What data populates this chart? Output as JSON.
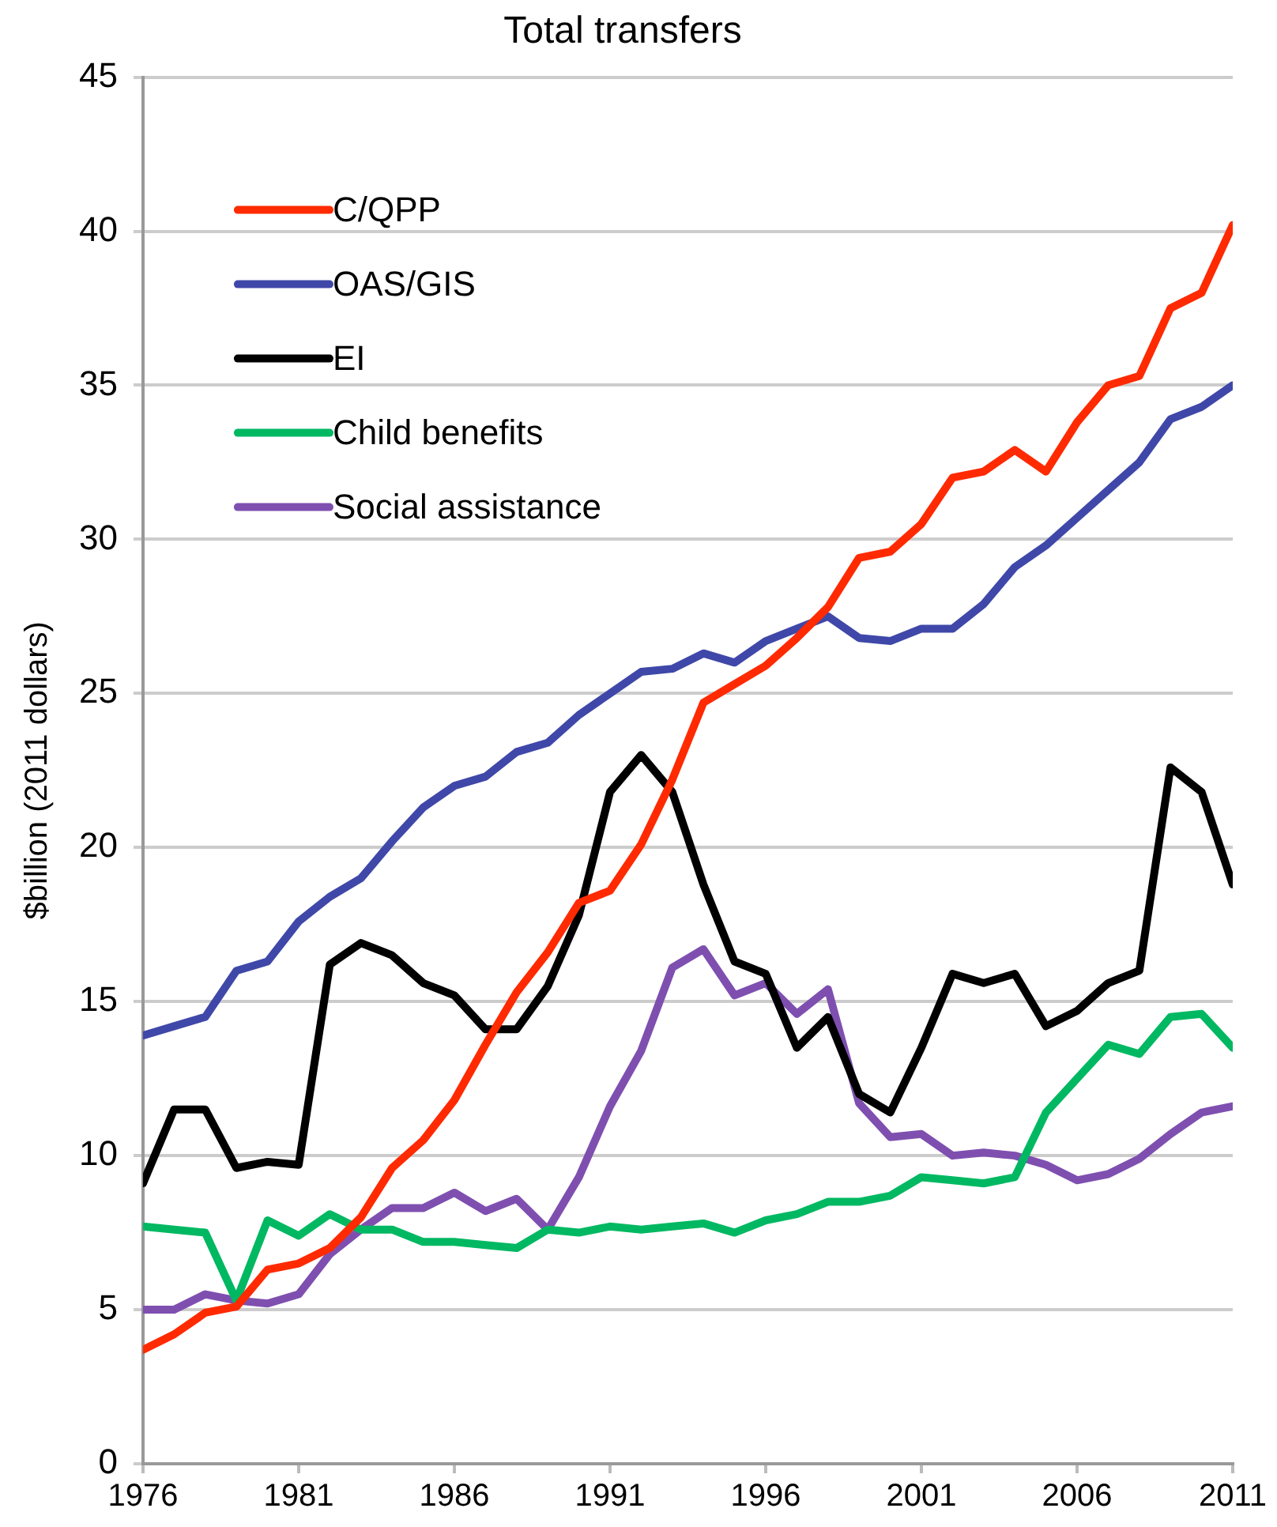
{
  "chart_data": {
    "type": "line",
    "title": "Total transfers",
    "ylabel": "$billion (2011 dollars)",
    "x": [
      1976,
      1977,
      1978,
      1979,
      1980,
      1981,
      1982,
      1983,
      1984,
      1985,
      1986,
      1987,
      1988,
      1989,
      1990,
      1991,
      1992,
      1993,
      1994,
      1995,
      1996,
      1997,
      1998,
      1999,
      2000,
      2001,
      2002,
      2003,
      2004,
      2005,
      2006,
      2007,
      2008,
      2009,
      2010,
      2011
    ],
    "xlim": [
      1976,
      2011
    ],
    "xticks": [
      1976,
      1981,
      1986,
      1991,
      1996,
      2001,
      2006,
      2011
    ],
    "ylim": [
      0,
      45
    ],
    "yticks": [
      0,
      5,
      10,
      15,
      20,
      25,
      30,
      35,
      40,
      45
    ],
    "grid": "y",
    "legend": "top left",
    "line_style": "solid",
    "marker": "none",
    "series": [
      {
        "name": "C/QPP",
        "color": "#ff2a00",
        "values": [
          3.7,
          4.2,
          4.9,
          5.1,
          6.3,
          6.5,
          7.0,
          8.0,
          9.6,
          10.5,
          11.8,
          13.6,
          15.3,
          16.6,
          18.2,
          18.6,
          20.1,
          22.2,
          24.7,
          25.3,
          25.9,
          26.8,
          27.8,
          29.4,
          29.6,
          30.5,
          32.0,
          32.2,
          32.9,
          32.2,
          33.8,
          35.0,
          35.3,
          37.5,
          38.0,
          40.2
        ]
      },
      {
        "name": "OAS/GIS",
        "color": "#3f48a8",
        "values": [
          13.9,
          14.2,
          14.5,
          16.0,
          16.3,
          17.6,
          18.4,
          19.0,
          20.2,
          21.3,
          22.0,
          22.3,
          23.1,
          23.4,
          24.3,
          25.0,
          25.7,
          25.8,
          26.3,
          26.0,
          26.7,
          27.1,
          27.5,
          26.8,
          26.7,
          27.1,
          27.1,
          27.9,
          29.1,
          29.8,
          30.7,
          31.6,
          32.5,
          33.9,
          34.3,
          35.0
        ]
      },
      {
        "name": "EI",
        "color": "#000000",
        "values": [
          9.1,
          11.5,
          11.5,
          9.6,
          9.8,
          9.7,
          16.2,
          16.9,
          16.5,
          15.6,
          15.2,
          14.1,
          14.1,
          15.5,
          17.8,
          21.8,
          23.0,
          21.8,
          18.8,
          16.3,
          15.9,
          13.5,
          14.5,
          12.0,
          11.4,
          13.5,
          15.9,
          15.6,
          15.9,
          14.2,
          14.7,
          15.6,
          16.0,
          22.6,
          21.8,
          18.8
        ]
      },
      {
        "name": "Child benefits",
        "color": "#00b862",
        "values": [
          7.7,
          7.6,
          7.5,
          5.3,
          7.9,
          7.4,
          8.1,
          7.6,
          7.6,
          7.2,
          7.2,
          7.1,
          7.0,
          7.6,
          7.5,
          7.7,
          7.6,
          7.7,
          7.8,
          7.5,
          7.9,
          8.1,
          8.5,
          8.5,
          8.7,
          9.3,
          9.2,
          9.1,
          9.3,
          11.4,
          12.5,
          13.6,
          13.3,
          14.5,
          14.6,
          13.5
        ]
      },
      {
        "name": "Social assistance",
        "color": "#7f4fb0",
        "values": [
          5.0,
          5.0,
          5.5,
          5.3,
          5.2,
          5.5,
          6.8,
          7.6,
          8.3,
          8.3,
          8.8,
          8.2,
          8.6,
          7.6,
          9.3,
          11.6,
          13.4,
          16.1,
          16.7,
          15.2,
          15.6,
          14.6,
          15.4,
          11.7,
          10.6,
          10.7,
          10.0,
          10.1,
          10.0,
          9.7,
          9.2,
          9.4,
          9.9,
          10.7,
          11.4,
          11.6
        ]
      }
    ]
  }
}
